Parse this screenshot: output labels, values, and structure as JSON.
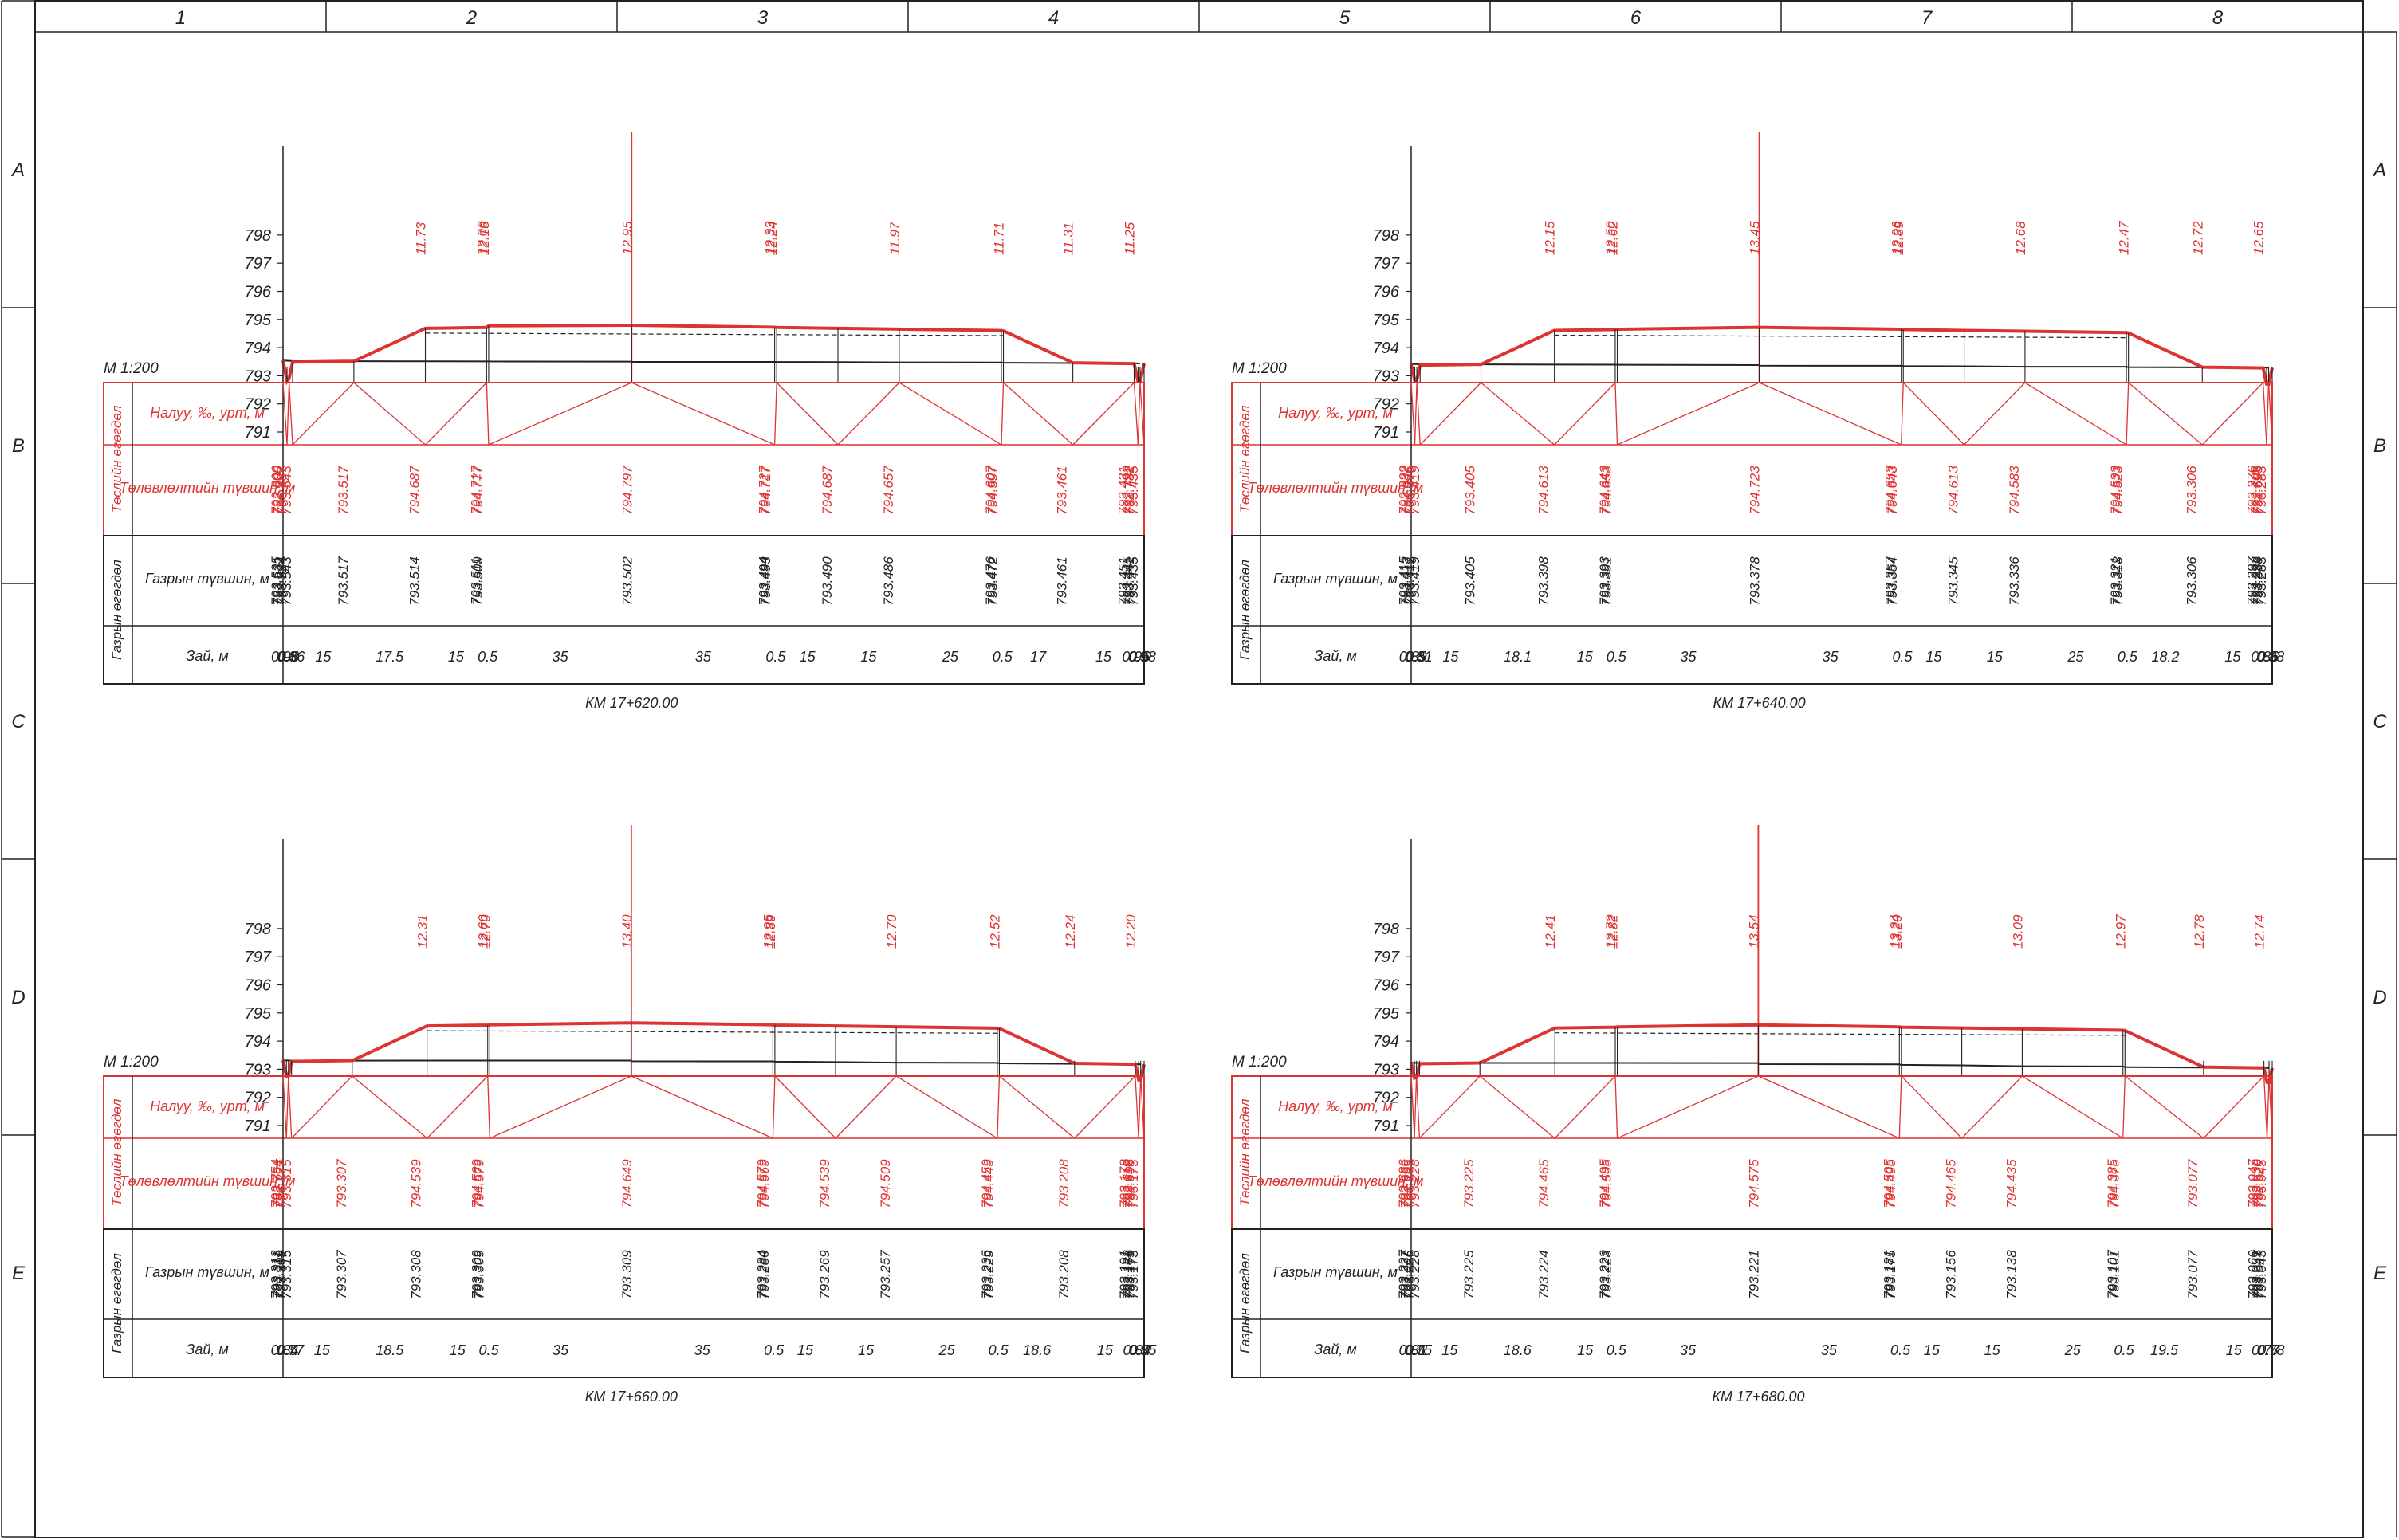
{
  "grid": {
    "columns": [
      "1",
      "2",
      "3",
      "4",
      "5",
      "6",
      "7",
      "8"
    ],
    "rows": [
      "A",
      "B",
      "C",
      "D",
      "E"
    ]
  },
  "labels": {
    "scale": "М 1:200",
    "slope_row": "Налуу, ‰, урт, м",
    "design_row": "Төлөвлөлтийн түвшин, м",
    "ground_row": "Газрын түвшин, м",
    "dist_row": "Зай, м",
    "design_group": "Төслийн өгөгдөл",
    "ground_group": "Газрын өгөгдөл"
  },
  "colors": {
    "design": "#dd3333",
    "ground": "#222222"
  },
  "sections": [
    {
      "km": "КМ 17+620.00",
      "center_design": "794.797",
      "center_ground": "793.502",
      "left_dist": [
        "0.98",
        "0.5",
        "0.86",
        "15",
        "17.5",
        "15",
        "0.5",
        "35"
      ],
      "right_dist": [
        "35",
        "0.5",
        "15",
        "15",
        "25",
        "0.5",
        "17",
        "15",
        "0.96",
        "0.5",
        "0.98"
      ],
      "left_design": [
        "793.543",
        "792.800",
        "792.900",
        "793.487",
        "793.517",
        "794.687",
        "794.717",
        "794.777"
      ],
      "right_design": [
        "794.727",
        "794.717",
        "794.687",
        "794.657",
        "794.607",
        "794.597",
        "793.461",
        "793.431",
        "792.792",
        "792.782",
        "793.435"
      ],
      "left_ground": [
        "793.543",
        "793.535",
        "793.531",
        "793.524",
        "793.517",
        "793.514",
        "793.511",
        "793.509"
      ],
      "right_ground": [
        "793.494",
        "793.493",
        "793.490",
        "793.486",
        "793.476",
        "793.472",
        "793.461",
        "793.451",
        "793.445",
        "793.441",
        "793.435"
      ],
      "top_marks": [
        "11.73",
        "12.06",
        "12.18",
        "12.95",
        "12.33",
        "12.24",
        "11.97",
        "11.71",
        "11.31",
        "11.25"
      ]
    },
    {
      "km": "КМ 17+640.00",
      "center_design": "794.723",
      "center_ground": "793.378",
      "left_dist": [
        "0.89",
        "0.5",
        "0.81",
        "15",
        "18.1",
        "15",
        "0.5",
        "35"
      ],
      "right_dist": [
        "35",
        "0.5",
        "15",
        "15",
        "25",
        "0.5",
        "18.2",
        "15",
        "0.86",
        "0.5",
        "0.88"
      ],
      "left_design": [
        "793.419",
        "792.822",
        "792.832",
        "793.375",
        "793.405",
        "794.613",
        "794.643",
        "794.653"
      ],
      "right_design": [
        "794.653",
        "794.643",
        "794.613",
        "794.583",
        "794.533",
        "794.523",
        "793.306",
        "793.276",
        "792.705",
        "792.695",
        "793.283"
      ],
      "left_ground": [
        "793.419",
        "793.415",
        "793.413",
        "793.411",
        "793.405",
        "793.398",
        "793.393",
        "793.391"
      ],
      "right_ground": [
        "793.357",
        "793.354",
        "793.345",
        "793.336",
        "793.321",
        "793.318",
        "793.306",
        "793.297",
        "793.292",
        "793.289",
        "793.283"
      ],
      "top_marks": [
        "12.15",
        "12.50",
        "12.62",
        "13.45",
        "12.96",
        "12.89",
        "12.68",
        "12.47",
        "12.72",
        "12.65"
      ]
    },
    {
      "km": "КМ 17+660.00",
      "center_design": "794.649",
      "center_ground": "793.309",
      "left_dist": [
        "0.84",
        "0.5",
        "0.77",
        "15",
        "18.5",
        "15",
        "0.5",
        "35"
      ],
      "right_dist": [
        "35",
        "0.5",
        "15",
        "15",
        "25",
        "0.5",
        "18.6",
        "15",
        "0.84",
        "0.5",
        "0.85"
      ],
      "left_design": [
        "793.315",
        "792.754",
        "792.764",
        "793.277",
        "793.307",
        "794.539",
        "794.569",
        "794.579"
      ],
      "right_design": [
        "794.579",
        "794.569",
        "794.539",
        "794.509",
        "794.459",
        "794.449",
        "793.208",
        "793.178",
        "792.618",
        "792.608",
        "793.173"
      ],
      "left_ground": [
        "793.315",
        "793.313",
        "793.311",
        "793.309",
        "793.307",
        "793.308",
        "793.309",
        "793.309"
      ],
      "right_ground": [
        "793.284",
        "793.280",
        "793.269",
        "793.257",
        "793.235",
        "793.229",
        "793.208",
        "793.191",
        "793.183",
        "793.179",
        "793.173"
      ],
      "top_marks": [
        "12.31",
        "12.60",
        "12.70",
        "13.40",
        "12.95",
        "12.89",
        "12.70",
        "12.52",
        "12.24",
        "12.20"
      ]
    },
    {
      "km": "КМ 17+680.00",
      "center_design": "794.575",
      "center_ground": "793.221",
      "left_dist": [
        "0.81",
        "0.5",
        "0.75",
        "15",
        "18.6",
        "15",
        "0.5",
        "35"
      ],
      "right_dist": [
        "35",
        "0.5",
        "15",
        "15",
        "25",
        "0.5",
        "19.5",
        "15",
        "0.77",
        "0.5",
        "0.78"
      ],
      "left_design": [
        "793.228",
        "792.686",
        "792.696",
        "793.195",
        "793.225",
        "794.465",
        "794.495",
        "794.505"
      ],
      "right_design": [
        "794.505",
        "794.495",
        "794.465",
        "794.435",
        "794.385",
        "794.375",
        "793.077",
        "793.047",
        "792.530",
        "792.520",
        "793.043"
      ],
      "left_ground": [
        "793.228",
        "793.227",
        "793.227",
        "793.226",
        "793.225",
        "793.224",
        "793.223",
        "793.223"
      ],
      "right_ground": [
        "793.181",
        "793.175",
        "793.156",
        "793.138",
        "793.107",
        "793.101",
        "793.077",
        "793.060",
        "793.051",
        "793.047",
        "793.043"
      ],
      "top_marks": [
        "12.41",
        "12.72",
        "12.82",
        "13.54",
        "13.24",
        "13.20",
        "13.09",
        "12.97",
        "12.78",
        "12.74"
      ]
    }
  ]
}
